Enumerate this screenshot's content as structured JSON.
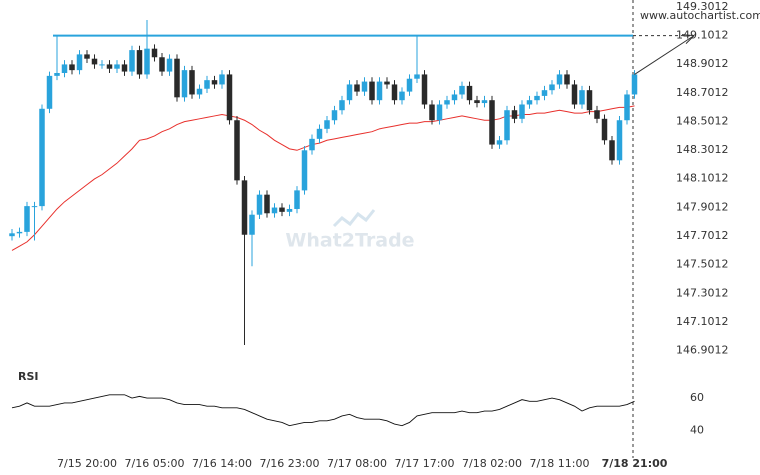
{
  "site": "www.autochartist.com",
  "watermark": "What2Trade",
  "chart_data": [
    {
      "type": "candlestick",
      "categories": [
        null,
        null,
        null,
        null,
        null,
        null,
        null,
        null,
        null,
        null,
        "7/15 20:00",
        null,
        null,
        null,
        null,
        null,
        null,
        null,
        null,
        "7/16 05:00",
        null,
        null,
        null,
        null,
        null,
        null,
        null,
        null,
        "7/16 14:00",
        null,
        null,
        null,
        null,
        null,
        null,
        null,
        null,
        "7/16 23:00",
        null,
        null,
        null,
        null,
        null,
        null,
        null,
        null,
        "7/17 08:00",
        null,
        null,
        null,
        null,
        null,
        null,
        null,
        null,
        "7/17 17:00",
        null,
        null,
        null,
        null,
        null,
        null,
        null,
        null,
        "7/18 02:00",
        null,
        null,
        null,
        null,
        null,
        null,
        null,
        null,
        "7/18 11:00",
        null,
        null,
        null,
        null,
        null,
        null,
        null,
        null,
        null,
        "7/18 21:00"
      ],
      "open": [
        147.7,
        147.72,
        147.73,
        147.91,
        147.91,
        148.59,
        148.82,
        148.84,
        148.9,
        148.86,
        148.97,
        148.94,
        148.9,
        148.9,
        148.87,
        148.9,
        148.85,
        149.0,
        148.83,
        149.01,
        148.95,
        148.85,
        148.94,
        148.67,
        148.86,
        148.69,
        148.73,
        148.79,
        148.76,
        148.83,
        148.51,
        148.09,
        147.71,
        147.85,
        147.99,
        147.86,
        147.9,
        147.87,
        147.89,
        148.02,
        148.3,
        148.38,
        148.45,
        148.51,
        148.58,
        148.65,
        148.76,
        148.71,
        148.78,
        148.65,
        148.78,
        148.76,
        148.65,
        148.71,
        148.8,
        148.83,
        148.62,
        148.51,
        148.62,
        148.65,
        148.69,
        148.75,
        148.65,
        148.63,
        148.65,
        148.34,
        148.37,
        148.58,
        148.52,
        148.62,
        148.65,
        148.68,
        148.72,
        148.76,
        148.83,
        148.76,
        148.62,
        148.72,
        148.58,
        148.52,
        148.37,
        148.23,
        148.51,
        148.69
      ],
      "high": [
        147.75,
        147.76,
        147.94,
        147.94,
        148.62,
        148.85,
        149.1,
        148.93,
        148.93,
        149.0,
        149.0,
        148.97,
        148.93,
        148.93,
        148.93,
        148.93,
        149.03,
        149.03,
        149.21,
        149.04,
        148.98,
        148.97,
        148.97,
        148.89,
        148.89,
        148.76,
        148.82,
        148.82,
        148.86,
        148.86,
        148.54,
        148.12,
        147.88,
        148.02,
        148.02,
        147.93,
        147.93,
        147.92,
        148.05,
        148.33,
        148.41,
        148.48,
        148.54,
        148.61,
        148.68,
        148.79,
        148.79,
        148.81,
        148.81,
        148.81,
        148.81,
        148.79,
        148.74,
        148.83,
        149.1,
        148.86,
        148.65,
        148.65,
        148.68,
        148.72,
        148.78,
        148.78,
        148.68,
        148.68,
        148.68,
        148.4,
        148.61,
        148.61,
        148.65,
        148.68,
        148.71,
        148.75,
        148.79,
        148.86,
        148.86,
        148.79,
        148.75,
        148.75,
        148.61,
        148.55,
        148.4,
        148.54,
        148.72,
        148.86
      ],
      "low": [
        147.67,
        147.69,
        147.7,
        147.67,
        147.88,
        148.56,
        148.79,
        148.81,
        148.83,
        148.83,
        148.91,
        148.87,
        148.87,
        148.84,
        148.84,
        148.82,
        148.82,
        148.8,
        148.8,
        148.92,
        148.82,
        148.82,
        148.64,
        148.64,
        148.66,
        148.66,
        148.7,
        148.73,
        148.73,
        148.48,
        148.06,
        146.94,
        147.49,
        147.82,
        147.83,
        147.83,
        147.84,
        147.84,
        147.86,
        147.99,
        148.27,
        148.35,
        148.42,
        148.48,
        148.55,
        148.62,
        148.68,
        148.68,
        148.62,
        148.62,
        148.73,
        148.62,
        148.62,
        148.68,
        148.77,
        148.59,
        148.48,
        148.48,
        148.59,
        148.62,
        148.66,
        148.62,
        148.6,
        148.6,
        148.31,
        148.31,
        148.34,
        148.49,
        148.49,
        148.59,
        148.62,
        148.65,
        148.69,
        148.73,
        148.73,
        148.59,
        148.59,
        148.55,
        148.49,
        148.34,
        148.2,
        148.2,
        148.48,
        148.66
      ],
      "close": [
        147.72,
        147.73,
        147.91,
        147.91,
        148.59,
        148.82,
        148.84,
        148.9,
        148.86,
        148.97,
        148.94,
        148.9,
        148.9,
        148.87,
        148.9,
        148.85,
        149.0,
        148.83,
        149.01,
        148.95,
        148.85,
        148.94,
        148.67,
        148.86,
        148.69,
        148.73,
        148.79,
        148.76,
        148.83,
        148.51,
        148.09,
        147.71,
        147.85,
        147.99,
        147.86,
        147.9,
        147.87,
        147.89,
        148.02,
        148.3,
        148.38,
        148.45,
        148.51,
        148.58,
        148.65,
        148.76,
        148.71,
        148.78,
        148.65,
        148.78,
        148.76,
        148.65,
        148.71,
        148.8,
        148.83,
        148.62,
        148.51,
        148.62,
        148.65,
        148.69,
        148.75,
        148.65,
        148.63,
        148.65,
        148.34,
        148.37,
        148.58,
        148.52,
        148.62,
        148.65,
        148.68,
        148.72,
        148.76,
        148.83,
        148.76,
        148.62,
        148.72,
        148.58,
        148.52,
        148.37,
        148.23,
        148.51,
        148.69,
        148.83
      ],
      "up_color": "#29a3dc",
      "down_color": "#2a2a2a",
      "ma": {
        "color": "#e8302c",
        "values": [
          147.6,
          147.63,
          147.66,
          147.71,
          147.77,
          147.83,
          147.89,
          147.94,
          147.98,
          148.02,
          148.06,
          148.1,
          148.13,
          148.17,
          148.21,
          148.26,
          148.31,
          148.37,
          148.38,
          148.4,
          148.43,
          148.45,
          148.48,
          148.5,
          148.51,
          148.52,
          148.53,
          148.54,
          148.55,
          148.54,
          148.53,
          148.51,
          148.48,
          148.44,
          148.41,
          148.37,
          148.34,
          148.31,
          148.3,
          148.32,
          148.34,
          148.35,
          148.37,
          148.38,
          148.39,
          148.4,
          148.41,
          148.42,
          148.43,
          148.45,
          148.46,
          148.47,
          148.48,
          148.49,
          148.49,
          148.5,
          148.5,
          148.51,
          148.52,
          148.53,
          148.54,
          148.53,
          148.52,
          148.51,
          148.51,
          148.52,
          148.54,
          148.54,
          148.55,
          148.55,
          148.56,
          148.56,
          148.57,
          148.58,
          148.57,
          148.56,
          148.56,
          148.57,
          148.57,
          148.58,
          148.59,
          148.6,
          148.6,
          148.61
        ]
      },
      "resistance": {
        "value": 149.1012,
        "color": "#29a3dc"
      },
      "ylim": [
        146.8,
        149.35
      ],
      "yticks": [
        149.3012,
        149.1012,
        148.9012,
        148.7012,
        148.5012,
        148.3012,
        148.1012,
        147.9012,
        147.7012,
        147.5012,
        147.3012,
        147.1012,
        146.9012
      ]
    },
    {
      "type": "line",
      "title": "RSI",
      "color": "#111111",
      "values": [
        54,
        55,
        57,
        55,
        55,
        55,
        56,
        57,
        57,
        58,
        59,
        60,
        61,
        62,
        62,
        62,
        60,
        61,
        60,
        60,
        60,
        59,
        57,
        56,
        56,
        56,
        55,
        55,
        54,
        54,
        54,
        53,
        51,
        49,
        47,
        46,
        45,
        43,
        44,
        45,
        45,
        46,
        46,
        47,
        49,
        50,
        48,
        47,
        47,
        47,
        46,
        44,
        43,
        45,
        49,
        50,
        51,
        51,
        51,
        51,
        52,
        51,
        51,
        52,
        52,
        53,
        55,
        57,
        59,
        58,
        58,
        59,
        60,
        59,
        57,
        55,
        52,
        54,
        55,
        55,
        55,
        55,
        56,
        58
      ],
      "ylim": [
        25,
        68
      ],
      "yticks": [
        40,
        60
      ]
    }
  ]
}
